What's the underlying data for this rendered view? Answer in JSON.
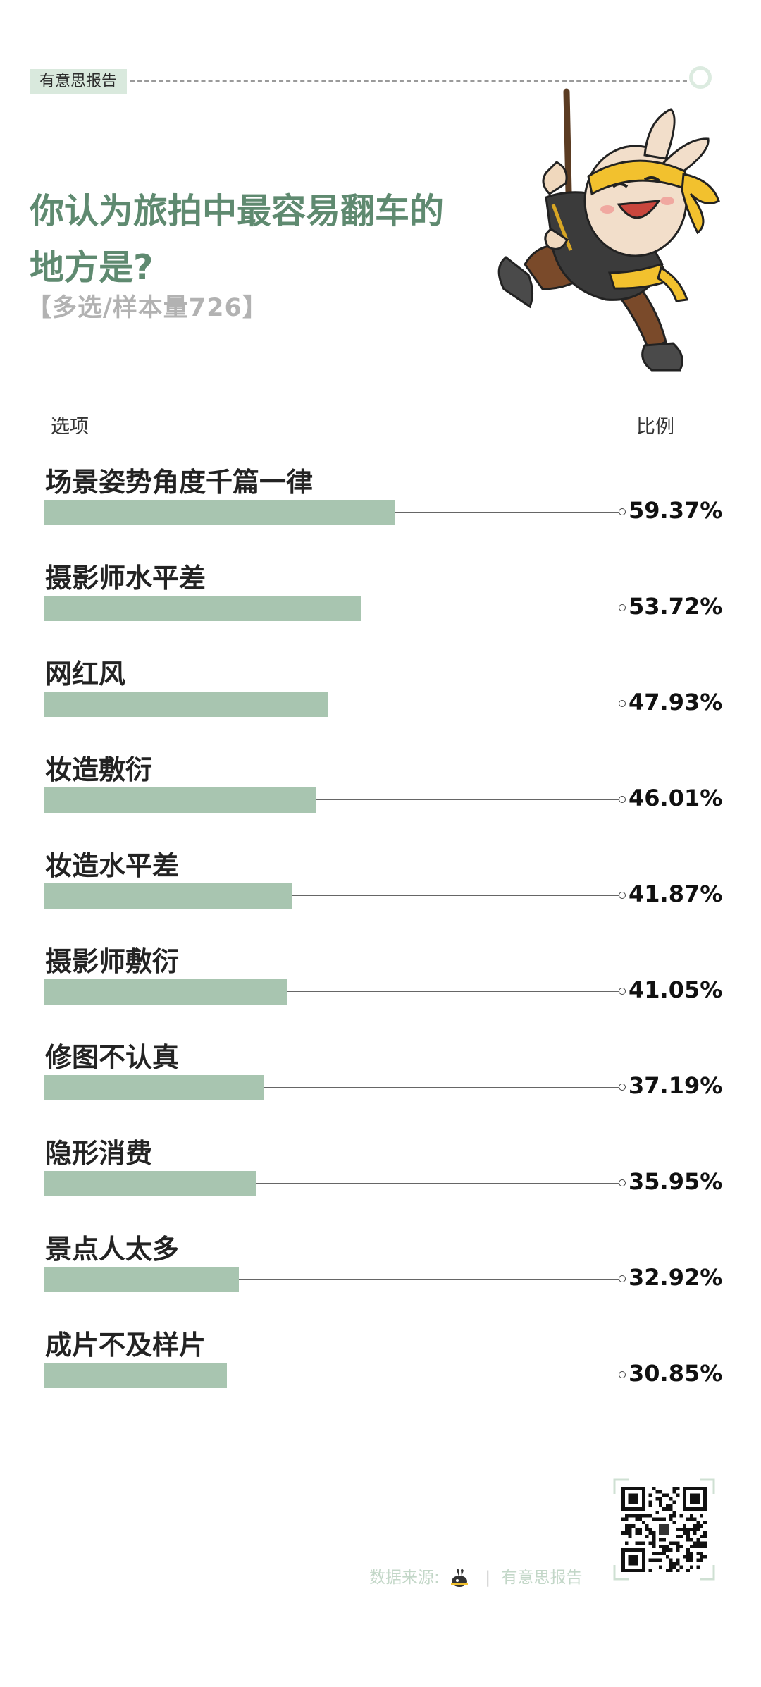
{
  "header": {
    "brand_tag": "有意思报告"
  },
  "title": "你认为旅拍中最容易翻车的地方是?",
  "subtitle": "【多选/样本量726】",
  "columns": {
    "option": "选项",
    "ratio": "比例"
  },
  "footer": {
    "source_label": "数据来源:",
    "source_name": "有意思报告"
  },
  "colors": {
    "title": "#5f8a70",
    "bar": "#a8c5b0",
    "tag_bg": "#d9e9dd",
    "subtitle": "#b2b2b2"
  },
  "chart_data": {
    "type": "bar",
    "orientation": "horizontal",
    "title": "你认为旅拍中最容易翻车的地方是?",
    "subtitle": "【多选/样本量726】",
    "categories": [
      "场景姿势角度千篇一律",
      "摄影师水平差",
      "网红风",
      "妆造敷衍",
      "妆造水平差",
      "摄影师敷衍",
      "修图不认真",
      "隐形消费",
      "景点人太多",
      "成片不及样片"
    ],
    "values": [
      59.37,
      53.72,
      47.93,
      46.01,
      41.87,
      41.05,
      37.19,
      35.95,
      32.92,
      30.85
    ],
    "value_labels": [
      "59.37%",
      "53.72%",
      "47.93%",
      "46.01%",
      "41.87%",
      "41.05%",
      "37.19%",
      "35.95%",
      "32.92%",
      "30.85%"
    ],
    "unit": "%",
    "xlim": [
      0,
      100
    ],
    "grid": false,
    "legend": "none"
  }
}
